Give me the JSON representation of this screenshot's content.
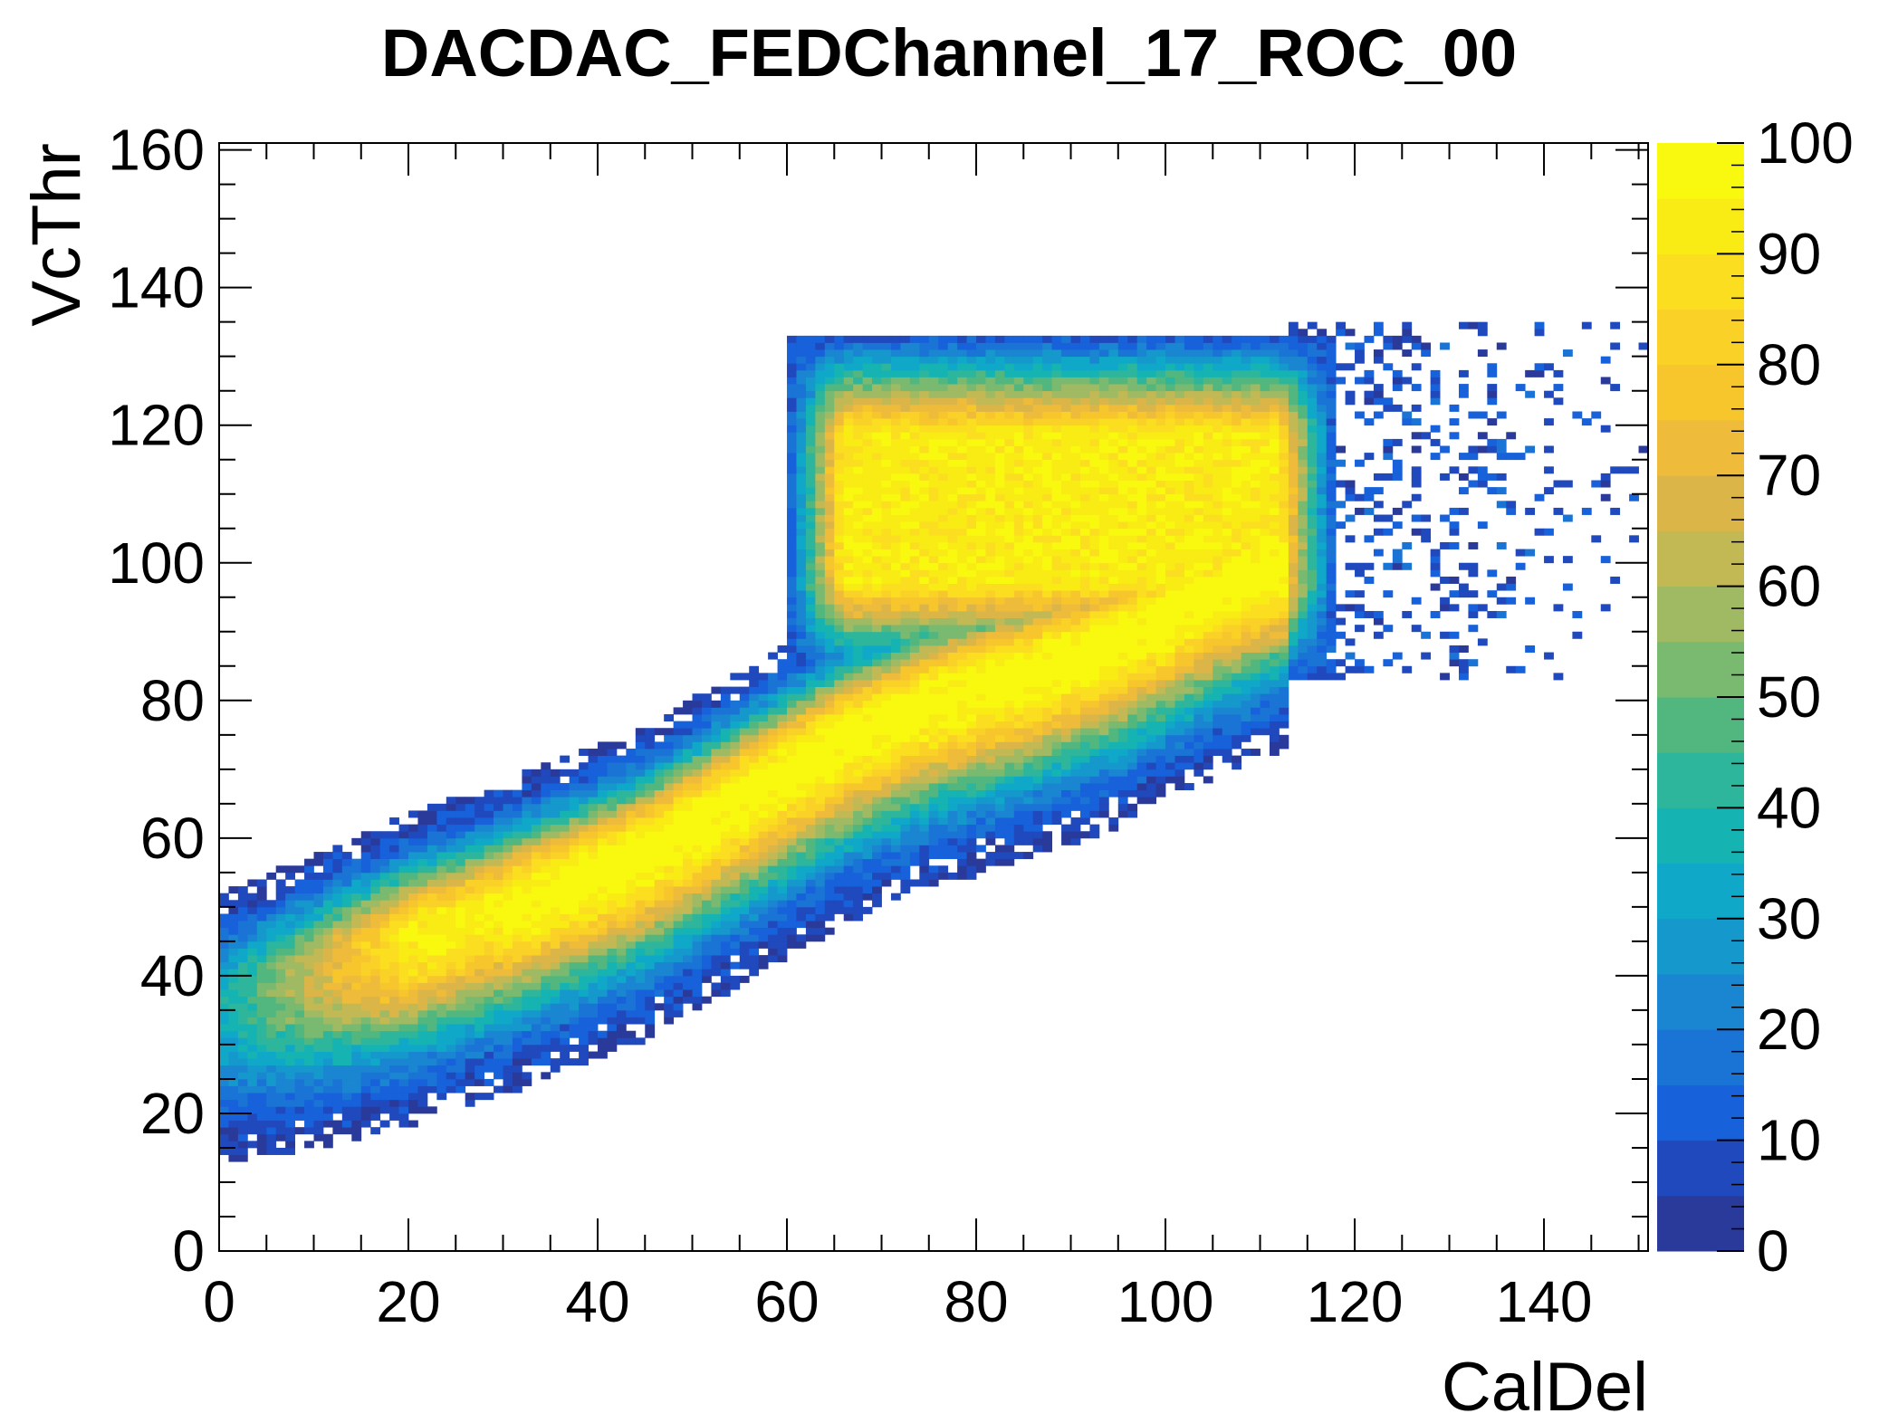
{
  "chart_data": {
    "type": "heatmap",
    "title": "DACDAC_FEDChannel_17_ROC_00",
    "xlabel": "CalDel",
    "ylabel": "VcThr",
    "xlim": [
      0,
      151
    ],
    "ylim": [
      0,
      161
    ],
    "xticks": [
      {
        "value": 0,
        "label": "0"
      },
      {
        "value": 20,
        "label": "20"
      },
      {
        "value": 40,
        "label": "40"
      },
      {
        "value": 60,
        "label": "60"
      },
      {
        "value": 80,
        "label": "80"
      },
      {
        "value": 100,
        "label": "100"
      },
      {
        "value": 120,
        "label": "120"
      },
      {
        "value": 140,
        "label": "140"
      }
    ],
    "yticks": [
      {
        "value": 0,
        "label": "0"
      },
      {
        "value": 20,
        "label": "20"
      },
      {
        "value": 40,
        "label": "40"
      },
      {
        "value": 60,
        "label": "60"
      },
      {
        "value": 80,
        "label": "80"
      },
      {
        "value": 100,
        "label": "100"
      },
      {
        "value": 120,
        "label": "120"
      },
      {
        "value": 140,
        "label": "140"
      },
      {
        "value": 160,
        "label": "160"
      }
    ],
    "colorbar": {
      "zlim": [
        0,
        100
      ],
      "ticks": [
        {
          "value": 0,
          "label": "0"
        },
        {
          "value": 10,
          "label": "10"
        },
        {
          "value": 20,
          "label": "20"
        },
        {
          "value": 30,
          "label": "30"
        },
        {
          "value": 40,
          "label": "40"
        },
        {
          "value": 50,
          "label": "50"
        },
        {
          "value": 60,
          "label": "60"
        },
        {
          "value": 70,
          "label": "70"
        },
        {
          "value": 80,
          "label": "80"
        },
        {
          "value": 90,
          "label": "90"
        },
        {
          "value": 100,
          "label": "100"
        }
      ],
      "palette": [
        "#2a3a9b",
        "#1f49bd",
        "#1761da",
        "#1a74d6",
        "#1a85d0",
        "#1598cc",
        "#10a8c8",
        "#16b3b3",
        "#2db69b",
        "#52b77f",
        "#79b970",
        "#9fba62",
        "#c2b954",
        "#dcb548",
        "#eebc3a",
        "#f7c52c",
        "#fad126",
        "#fbde20",
        "#f9eb14",
        "#f9f90f"
      ]
    },
    "grid": false,
    "description_regions": {
      "band": {
        "centerline": [
          [
            0,
            36
          ],
          [
            15,
            43
          ],
          [
            30,
            50
          ],
          [
            45,
            58
          ],
          [
            55,
            66
          ],
          [
            65,
            74
          ],
          [
            75,
            80
          ],
          [
            85,
            84
          ],
          [
            95,
            89
          ],
          [
            105,
            96
          ],
          [
            112,
            100
          ]
        ],
        "lower_edge_offset": 18,
        "upper_edge_offset": 12,
        "x_range": [
          0,
          113
        ]
      },
      "upper_plateau": {
        "x_range": [
          60,
          118
        ],
        "y_range": [
          83,
          133
        ],
        "peak_value": 85
      },
      "scatter_tail": {
        "x_range": [
          113,
          151
        ],
        "y_range": [
          83,
          135
        ],
        "peak_value": 12
      }
    }
  }
}
